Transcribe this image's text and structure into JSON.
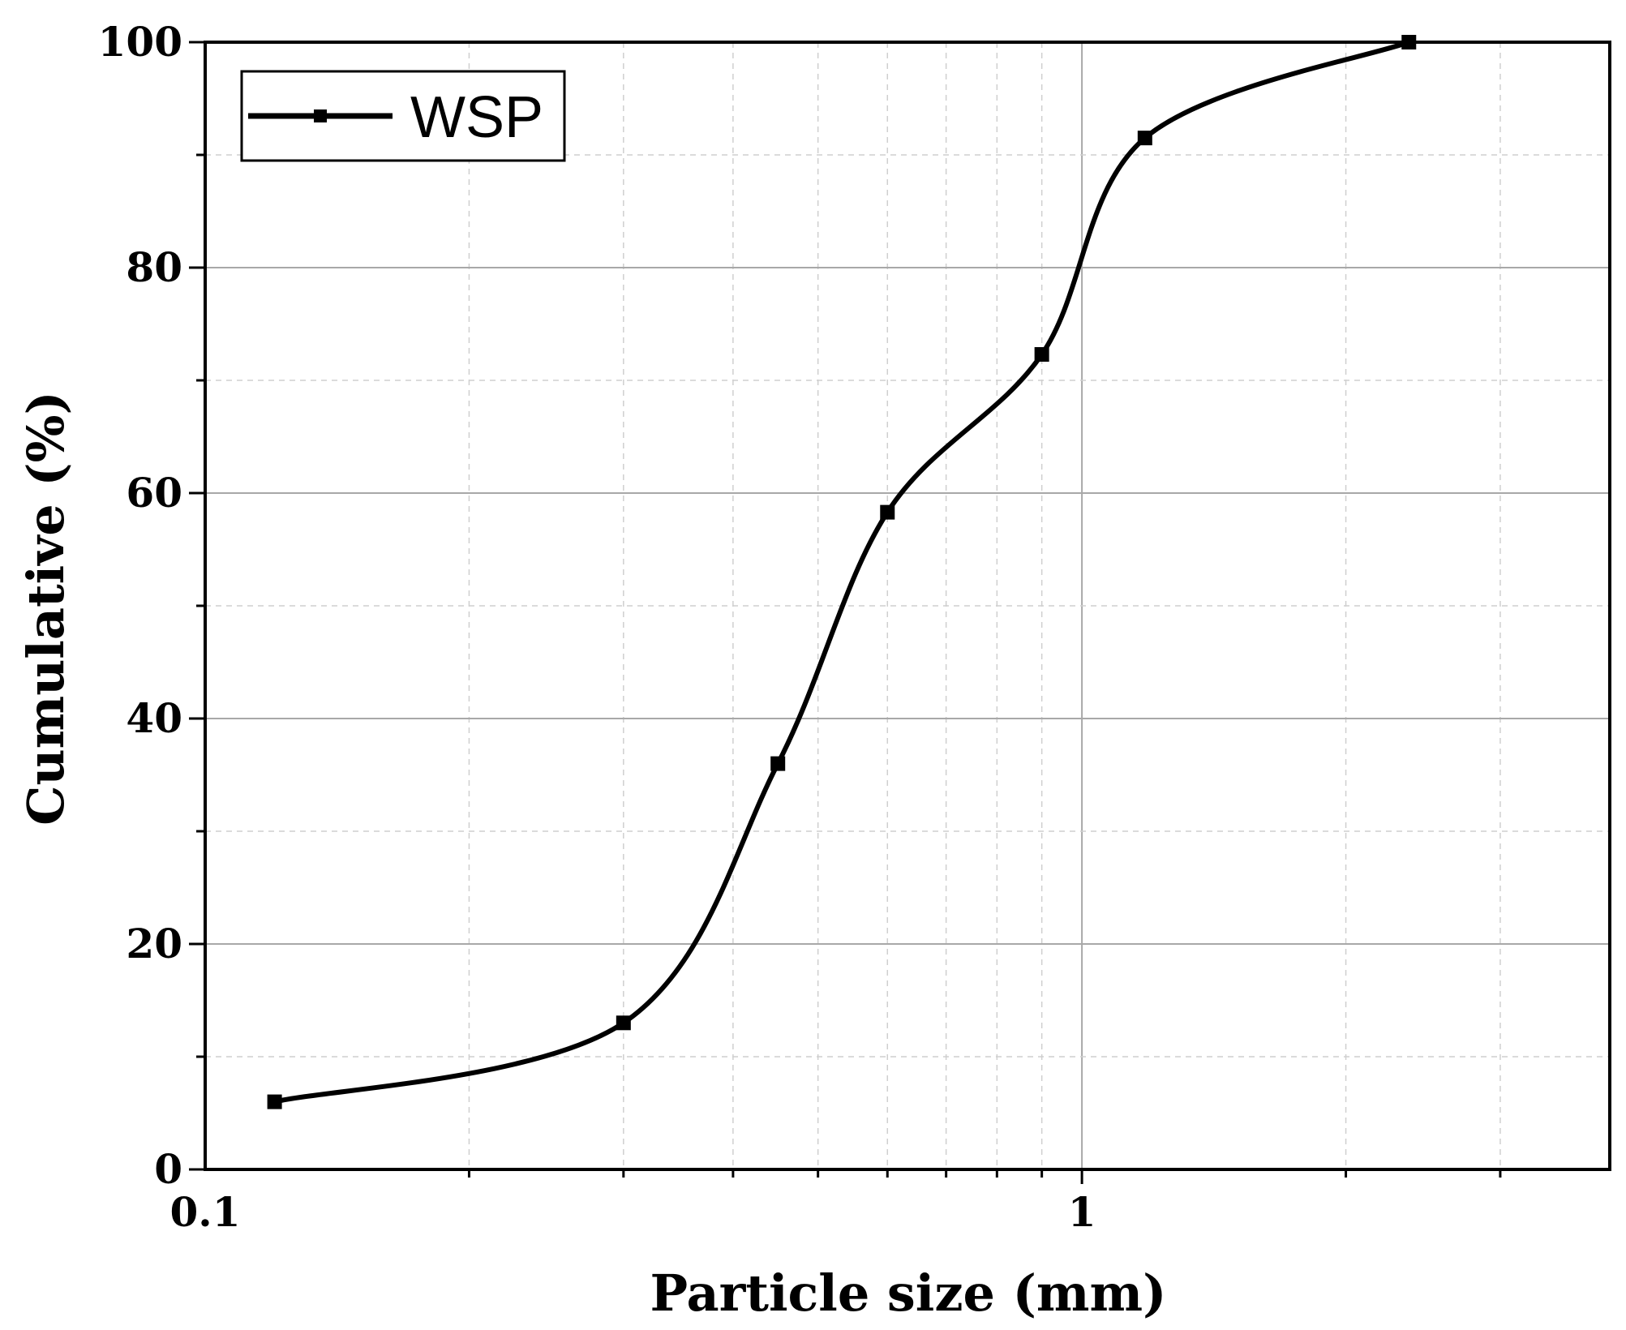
{
  "chart_data": {
    "type": "line",
    "title": "",
    "xlabel": "Particle size (mm)",
    "ylabel": "Cumulative (%)",
    "x_scale": "log",
    "xlim": [
      0.1,
      4.0
    ],
    "ylim": [
      0,
      100
    ],
    "x_ticks": [
      0.1,
      1
    ],
    "x_tick_labels": [
      "0.1",
      "1"
    ],
    "y_ticks": [
      0,
      20,
      40,
      60,
      80,
      100
    ],
    "y_tick_labels": [
      "0",
      "20",
      "40",
      "60",
      "80",
      "100"
    ],
    "grid": true,
    "legend": {
      "position": "top-left"
    },
    "series": [
      {
        "name": "WSP",
        "color": "#000000",
        "marker": "square",
        "smooth": true,
        "x": [
          0.12,
          0.3,
          0.45,
          0.6,
          0.9,
          1.18,
          2.36
        ],
        "y": [
          6,
          13,
          36,
          58.3,
          72.3,
          91.5,
          100
        ]
      }
    ]
  }
}
